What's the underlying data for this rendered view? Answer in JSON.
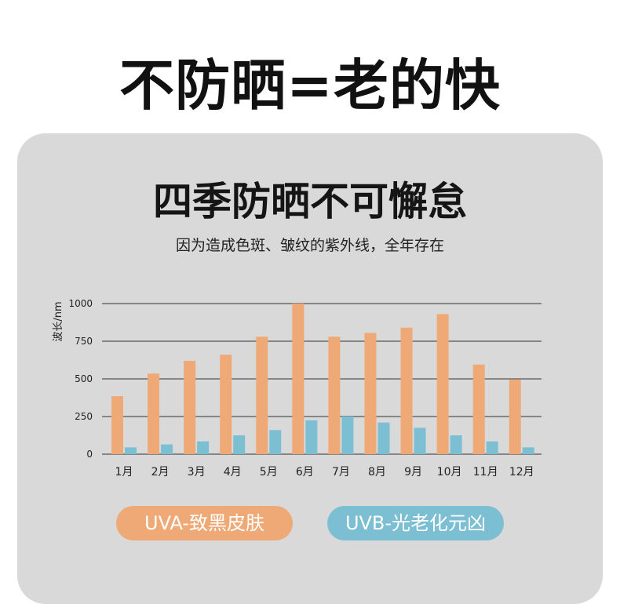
{
  "headline": "不防晒=老的快",
  "card": {
    "title": "四季防晒不可懈怠",
    "subtitle": "因为造成色斑、皱纹的紫外线，全年存在"
  },
  "legend": {
    "uva": "UVA-致黑皮肤",
    "uvb": "UVB-光老化元凶"
  },
  "colors": {
    "uva": "#efa976",
    "uvb": "#7cbfd3",
    "card_bg": "#d9d9d9",
    "gridline": "#333333"
  },
  "chart_data": {
    "type": "bar",
    "ylabel": "波长/nm",
    "xlabel": "",
    "ylim": [
      0,
      1000
    ],
    "yticks": [
      0,
      250,
      500,
      750,
      1000
    ],
    "categories": [
      "1月",
      "2月",
      "3月",
      "4月",
      "5月",
      "6月",
      "7月",
      "8月",
      "9月",
      "10月",
      "11月",
      "12月"
    ],
    "series": [
      {
        "name": "UVA-致黑皮肤",
        "values": [
          385,
          535,
          620,
          660,
          780,
          1000,
          780,
          805,
          840,
          930,
          595,
          495
        ]
      },
      {
        "name": "UVB-光老化元凶",
        "values": [
          45,
          65,
          85,
          125,
          160,
          225,
          250,
          210,
          175,
          125,
          85,
          45
        ]
      }
    ],
    "grid": true,
    "legend": "bottom"
  }
}
